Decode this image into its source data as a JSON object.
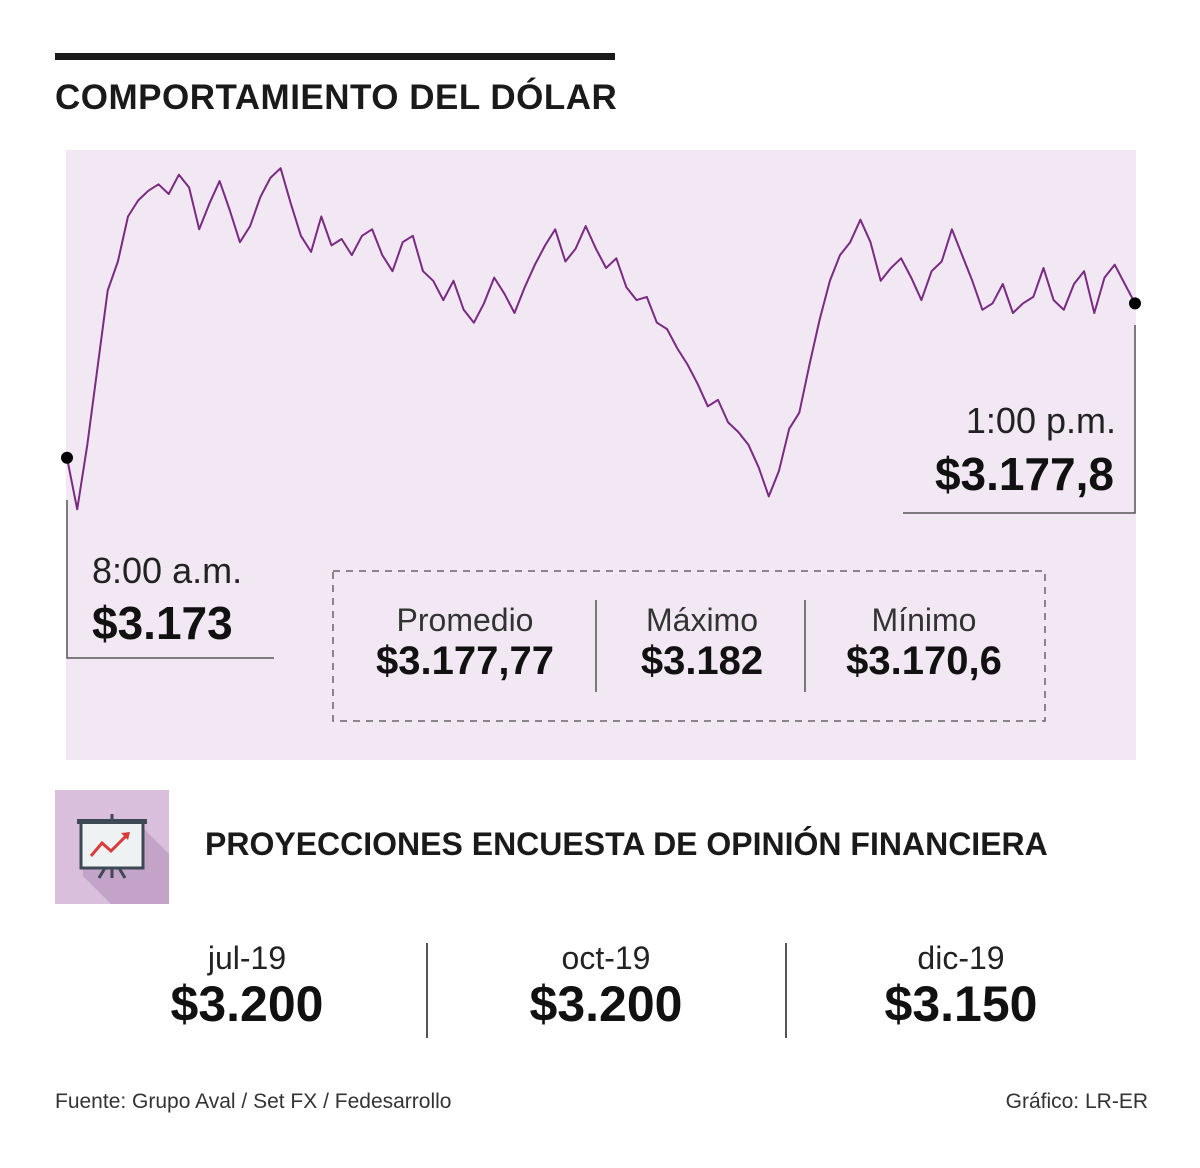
{
  "title": "COMPORTAMIENTO DEL DÓLAR",
  "chart_data": {
    "type": "area",
    "series": [
      {
        "values": [
          3173,
          3171.4,
          3173.4,
          3175.8,
          3178.2,
          3179.1,
          3180.5,
          3181.0,
          3181.3,
          3181.5,
          3181.2,
          3181.8,
          3181.4,
          3180.1,
          3180.9,
          3181.6,
          3180.7,
          3179.7,
          3180.2,
          3181.1,
          3181.7,
          3182.0,
          3180.9,
          3179.9,
          3179.4,
          3180.5,
          3179.6,
          3179.8,
          3179.3,
          3179.9,
          3180.1,
          3179.3,
          3178.8,
          3179.7,
          3179.9,
          3178.8,
          3178.5,
          3177.9,
          3178.5,
          3177.6,
          3177.2,
          3177.8,
          3178.6,
          3178.1,
          3177.5,
          3178.3,
          3179.0,
          3179.6,
          3180.1,
          3179.1,
          3179.5,
          3180.2,
          3179.5,
          3178.9,
          3179.2,
          3178.3,
          3177.9,
          3178.0,
          3177.2,
          3177.0,
          3176.4,
          3175.9,
          3175.3,
          3174.6,
          3174.8,
          3174.1,
          3173.8,
          3173.4,
          3172.7,
          3171.8,
          3172.6,
          3173.9,
          3174.4,
          3175.9,
          3177.3,
          3178.5,
          3179.3,
          3179.7,
          3180.4,
          3179.7,
          3178.5,
          3178.9,
          3179.2,
          3178.6,
          3177.9,
          3178.8,
          3179.1,
          3180.1,
          3179.3,
          3178.5,
          3177.6,
          3177.8,
          3178.4,
          3177.5,
          3177.8,
          3178.0,
          3178.9,
          3177.9,
          3177.6,
          3178.4,
          3178.8,
          3177.5,
          3178.6,
          3179.0,
          3178.4,
          3177.8
        ]
      }
    ],
    "annotations": {
      "open": {
        "time": "8:00 a.m.",
        "value": "$3.173"
      },
      "close": {
        "time": "1:00 p.m.",
        "value": "$3.177,8"
      }
    },
    "ylim": [
      3170.6,
      3182.1
    ],
    "grid": false,
    "colors": {
      "line": "#7a2a82",
      "area": "#f1e8f3",
      "marker": "#000000"
    }
  },
  "stats": [
    {
      "label": "Promedio",
      "value": "$3.177,77"
    },
    {
      "label": "Máximo",
      "value": "$3.182"
    },
    {
      "label": "Mínimo",
      "value": "$3.170,6"
    }
  ],
  "projections": {
    "title": "PROYECCIONES ENCUESTA DE OPINIÓN FINANCIERA",
    "icon": "presentation-chart-icon",
    "items": [
      {
        "label": "jul-19",
        "value": "$3.200"
      },
      {
        "label": "oct-19",
        "value": "$3.200"
      },
      {
        "label": "dic-19",
        "value": "$3.150"
      }
    ]
  },
  "footer": {
    "source": "Fuente: Grupo Aval / Set FX / Fedesarrollo",
    "credit": "Gráfico: LR-ER"
  }
}
